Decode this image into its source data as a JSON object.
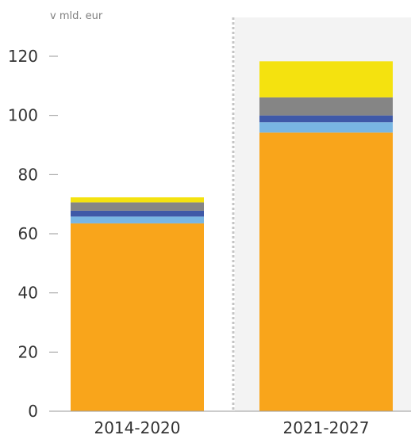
{
  "chart_data": {
    "type": "bar",
    "stacked": true,
    "unit_label": "v mld. eur",
    "categories": [
      "2014-2020",
      "2021-2027"
    ],
    "ylim": [
      0,
      120
    ],
    "yticks": [
      "0",
      "20",
      "40",
      "60",
      "80",
      "100",
      "120"
    ],
    "grid": false,
    "series": [
      {
        "color": "#f9a51b",
        "values": [
          63.5,
          94.2
        ]
      },
      {
        "color": "#79b6e3",
        "values": [
          2.3,
          3.5
        ]
      },
      {
        "color": "#3f59a8",
        "values": [
          2.0,
          2.3
        ]
      },
      {
        "color": "#858585",
        "values": [
          2.8,
          6.1
        ]
      },
      {
        "color": "#f4e20f",
        "values": [
          1.7,
          12.2
        ]
      }
    ],
    "highlighted_period": "2021-2027"
  }
}
